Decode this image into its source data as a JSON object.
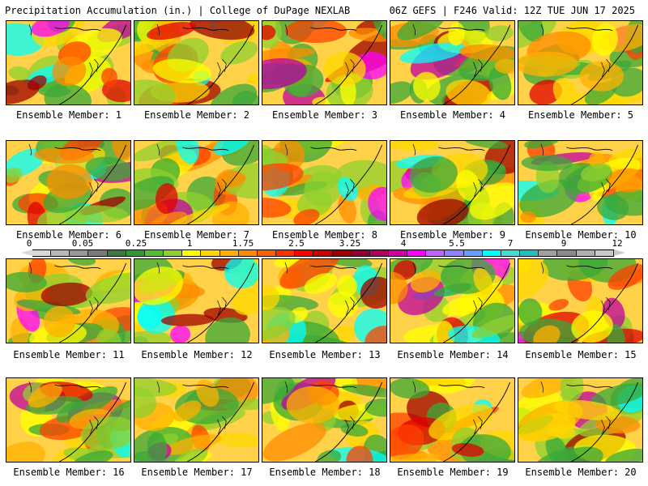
{
  "header": {
    "left": "Precipitation Accumulation (in.) | College of DuPage NEXLAB",
    "right": "06Z GEFS | F246 Valid: 12Z TUE JUN 17 2025"
  },
  "colorbar": {
    "tick_labels": [
      "0",
      "0.05",
      "0.25",
      "1",
      "1.75",
      "2.5",
      "3.25",
      "4",
      "5.5",
      "7",
      "9",
      "12"
    ],
    "colors": [
      "#d8d8d8",
      "#b8b8b8",
      "#989898",
      "#7a7a7a",
      "#3a7a3a",
      "#2f9a2f",
      "#4fc02f",
      "#8fd02f",
      "#ffff00",
      "#ffd700",
      "#ffb000",
      "#ff8c00",
      "#ff6000",
      "#ff3000",
      "#ff0000",
      "#d00000",
      "#a00000",
      "#900030",
      "#b00060",
      "#d000a0",
      "#ff00ff",
      "#c060ff",
      "#9080ff",
      "#60a0ff",
      "#00ffff",
      "#40e0d0",
      "#20c0c0",
      "#a0a0a0",
      "#8a8a8a",
      "#b0b0b0",
      "#c8c8c8"
    ]
  },
  "members": [
    {
      "label": "Ensemble Member: 1"
    },
    {
      "label": "Ensemble Member: 2"
    },
    {
      "label": "Ensemble Member: 3"
    },
    {
      "label": "Ensemble Member: 4"
    },
    {
      "label": "Ensemble Member: 5"
    },
    {
      "label": "Ensemble Member: 6"
    },
    {
      "label": "Ensemble Member: 7"
    },
    {
      "label": "Ensemble Member: 8"
    },
    {
      "label": "Ensemble Member: 9"
    },
    {
      "label": "Ensemble Member: 10"
    },
    {
      "label": "Ensemble Member: 11"
    },
    {
      "label": "Ensemble Member: 12"
    },
    {
      "label": "Ensemble Member: 13"
    },
    {
      "label": "Ensemble Member: 14"
    },
    {
      "label": "Ensemble Member: 15"
    },
    {
      "label": "Ensemble Member: 16"
    },
    {
      "label": "Ensemble Member: 17"
    },
    {
      "label": "Ensemble Member: 18"
    },
    {
      "label": "Ensemble Member: 19"
    },
    {
      "label": "Ensemble Member: 20"
    }
  ]
}
